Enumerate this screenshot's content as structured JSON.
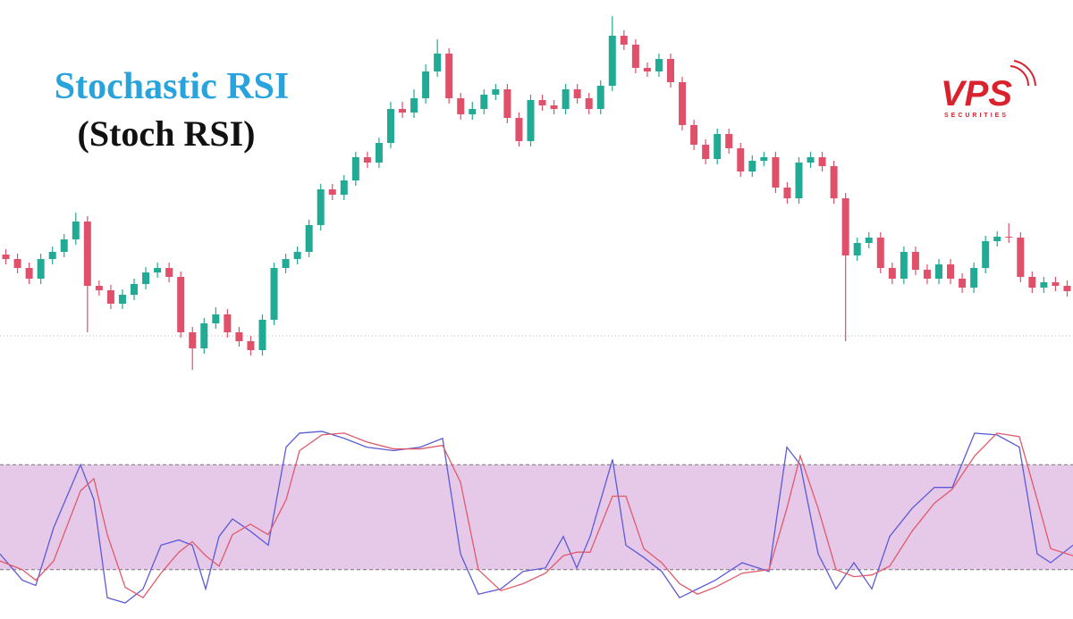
{
  "chart_data": [
    {
      "type": "candlestick",
      "title": "Stochastic RSI",
      "subtitle": "(Stoch RSI)",
      "open": [
        155,
        150,
        140,
        128,
        150,
        158,
        172,
        192,
        120,
        115,
        100,
        110,
        122,
        135,
        140,
        130,
        68,
        50,
        78,
        88,
        68,
        58,
        48,
        82,
        140,
        150,
        158,
        188,
        228,
        222,
        238,
        264,
        258,
        280,
        318,
        314,
        330,
        360,
        380,
        330,
        312,
        318,
        334,
        340,
        308,
        282,
        328,
        322,
        318,
        340,
        330,
        318,
        344,
        400,
        390,
        364,
        360,
        374,
        348,
        300,
        278,
        262,
        290,
        274,
        248,
        260,
        264,
        230,
        218,
        258,
        264,
        254,
        218,
        154,
        168,
        174,
        140,
        128,
        158,
        138,
        128,
        144,
        128,
        118,
        140,
        170,
        175,
        174,
        130,
        118,
        124,
        120
      ],
      "high": [
        161,
        156,
        146,
        156,
        164,
        178,
        202,
        198,
        126,
        121,
        116,
        128,
        141,
        146,
        146,
        136,
        74,
        84,
        96,
        94,
        74,
        64,
        88,
        146,
        156,
        164,
        194,
        234,
        234,
        244,
        270,
        270,
        286,
        326,
        326,
        340,
        368,
        396,
        386,
        336,
        326,
        340,
        346,
        346,
        314,
        334,
        334,
        328,
        346,
        346,
        336,
        350,
        422,
        406,
        396,
        370,
        380,
        380,
        354,
        306,
        284,
        296,
        296,
        280,
        266,
        270,
        270,
        236,
        264,
        270,
        270,
        260,
        224,
        174,
        180,
        180,
        146,
        164,
        164,
        144,
        150,
        150,
        134,
        146,
        176,
        181,
        190,
        180,
        136,
        130,
        130,
        126
      ],
      "low": [
        144,
        134,
        122,
        122,
        144,
        152,
        166,
        68,
        109,
        94,
        94,
        104,
        116,
        129,
        124,
        62,
        26,
        44,
        72,
        62,
        52,
        42,
        42,
        76,
        134,
        144,
        152,
        182,
        216,
        216,
        232,
        252,
        252,
        274,
        308,
        308,
        324,
        354,
        324,
        306,
        306,
        312,
        328,
        302,
        276,
        276,
        316,
        312,
        312,
        324,
        312,
        312,
        338,
        384,
        358,
        354,
        354,
        342,
        294,
        272,
        256,
        256,
        268,
        242,
        242,
        254,
        224,
        212,
        212,
        252,
        248,
        212,
        58,
        148,
        162,
        134,
        122,
        122,
        132,
        122,
        122,
        122,
        112,
        112,
        134,
        164,
        168,
        124,
        112,
        112,
        114,
        108
      ],
      "close": [
        150,
        140,
        128,
        150,
        158,
        172,
        192,
        120,
        115,
        100,
        110,
        122,
        135,
        140,
        130,
        68,
        50,
        78,
        88,
        68,
        58,
        48,
        82,
        140,
        150,
        158,
        188,
        228,
        222,
        238,
        264,
        258,
        280,
        318,
        314,
        330,
        360,
        380,
        330,
        312,
        318,
        334,
        340,
        308,
        282,
        328,
        322,
        318,
        340,
        330,
        318,
        344,
        400,
        390,
        364,
        360,
        374,
        348,
        300,
        278,
        262,
        290,
        274,
        248,
        260,
        264,
        230,
        218,
        258,
        264,
        254,
        218,
        154,
        168,
        174,
        140,
        128,
        158,
        138,
        128,
        144,
        128,
        118,
        140,
        170,
        175,
        174,
        130,
        118,
        124,
        120,
        114
      ],
      "ylim": [
        0,
        440
      ],
      "up_color": "#22ab94",
      "down_color": "#e0506a",
      "reference_line": 64
    },
    {
      "type": "line",
      "x": [
        0,
        25,
        40,
        60,
        75,
        90,
        105,
        120,
        140,
        160,
        180,
        200,
        215,
        230,
        245,
        260,
        280,
        300,
        320,
        335,
        360,
        385,
        410,
        440,
        470,
        495,
        515,
        535,
        560,
        585,
        610,
        630,
        645,
        660,
        685,
        700,
        720,
        740,
        760,
        780,
        800,
        830,
        860,
        880,
        895,
        915,
        935,
        955,
        975,
        995,
        1020,
        1045,
        1065,
        1090,
        1115,
        1140,
        1160,
        1175,
        1200
      ],
      "xlim": [
        0,
        1200
      ],
      "ylim": [
        0,
        100
      ],
      "band": [
        20,
        80
      ],
      "band_color": "#e6c9e8",
      "series": [
        {
          "color": "#5b5bd6",
          "values": [
            29,
            14,
            11,
            44,
            62,
            80,
            60,
            4,
            1,
            9,
            34,
            37,
            34,
            9,
            39,
            49,
            42,
            34,
            90,
            98,
            99,
            95,
            90,
            88,
            90,
            95,
            29,
            6,
            9,
            19,
            21,
            39,
            21,
            39,
            83,
            34,
            27,
            19,
            4,
            9,
            14,
            24,
            19,
            90,
            80,
            29,
            9,
            24,
            9,
            39,
            55,
            67,
            67,
            98,
            97,
            90,
            29,
            24,
            34
          ]
        },
        {
          "color": "#e05a6a",
          "values": [
            25,
            20,
            14,
            25,
            45,
            65,
            72,
            40,
            10,
            4,
            18,
            30,
            36,
            28,
            22,
            40,
            46,
            40,
            60,
            88,
            97,
            98,
            93,
            89,
            89,
            91,
            70,
            20,
            8,
            12,
            18,
            28,
            30,
            30,
            62,
            62,
            32,
            24,
            12,
            6,
            10,
            18,
            20,
            55,
            85,
            55,
            20,
            16,
            17,
            22,
            42,
            58,
            66,
            85,
            98,
            96,
            60,
            32,
            28
          ]
        }
      ]
    }
  ],
  "logo": {
    "text": "VPS",
    "tagline": "SECURITIES"
  }
}
